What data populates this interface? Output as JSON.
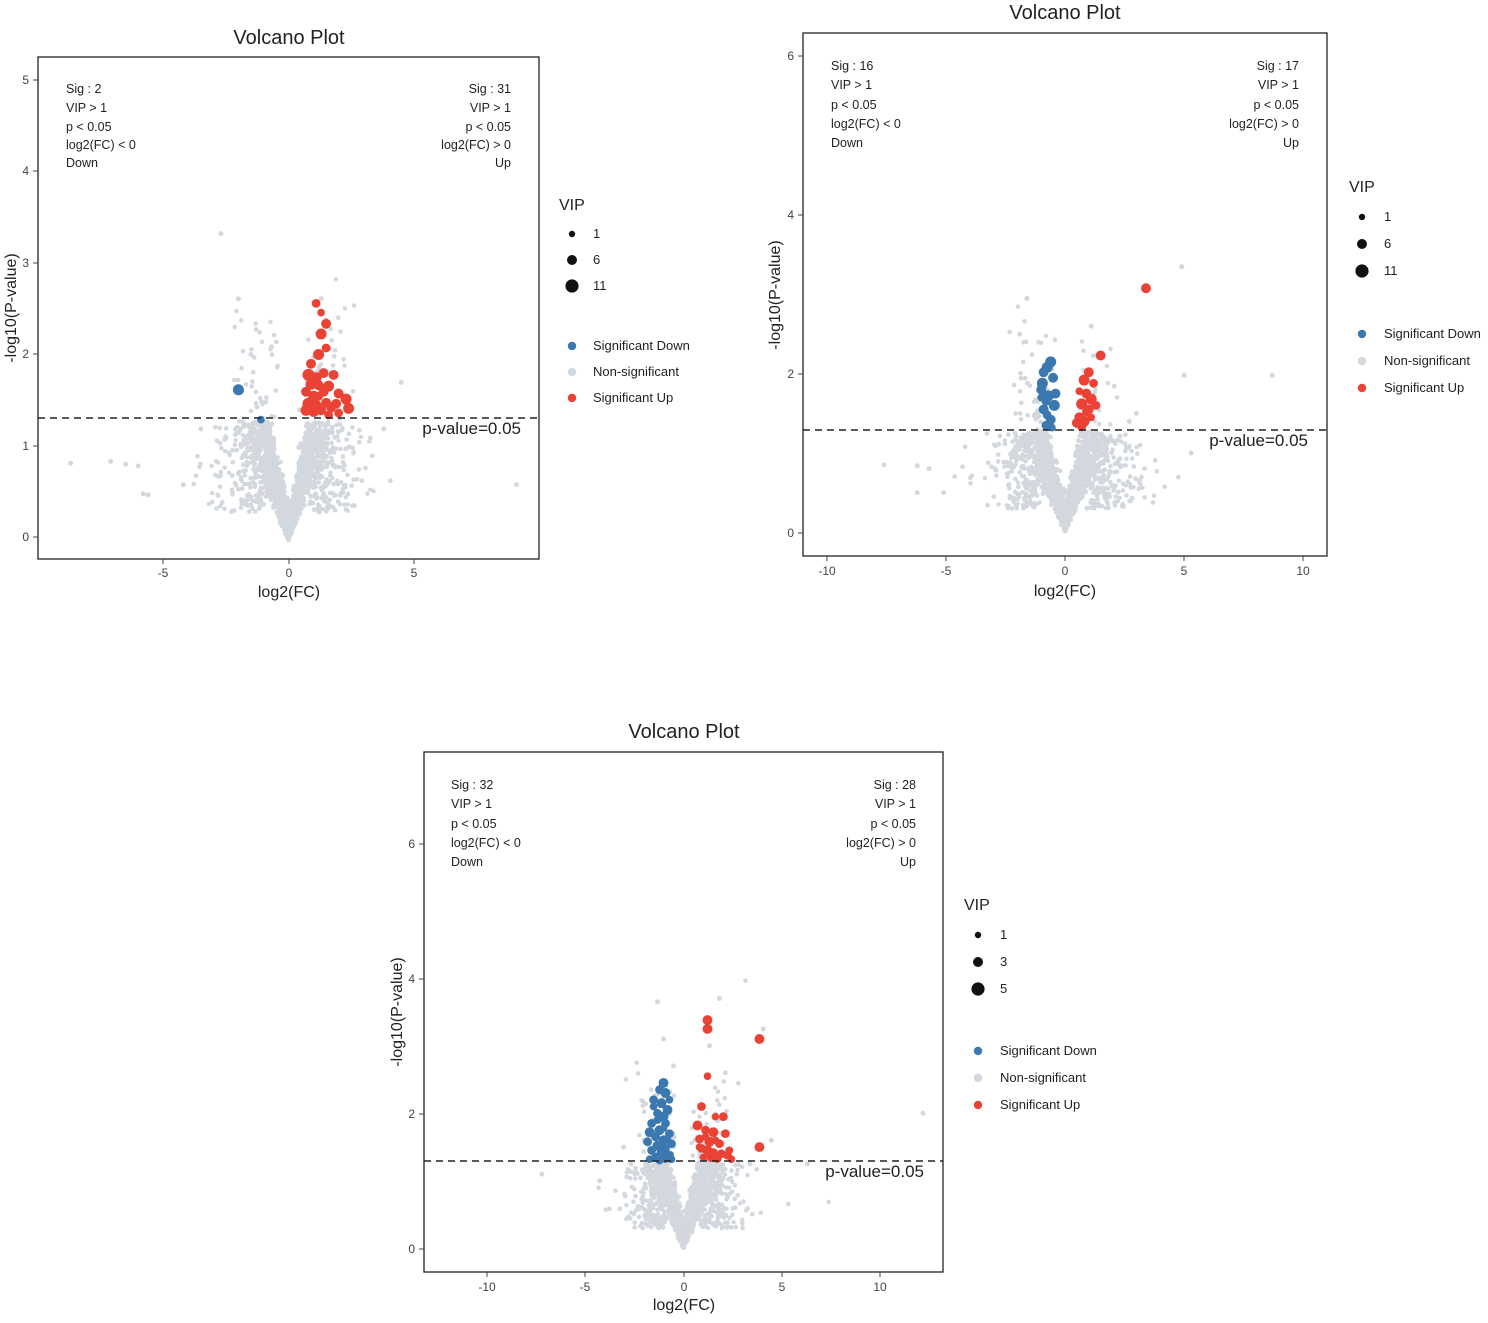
{
  "chart_data": [
    {
      "type": "scatter",
      "title": "Volcano Plot",
      "xlabel": "log2(FC)",
      "ylabel": "-log10(P-value)",
      "xlim": [
        -10,
        10
      ],
      "ylim": [
        -0.2,
        5.2
      ],
      "xticks": [
        -5,
        0,
        5
      ],
      "yticks": [
        0,
        1,
        2,
        3,
        4,
        5
      ],
      "threshold": {
        "y": 1.3,
        "label": "p-value=0.05"
      },
      "annot_left": [
        "Sig : 2",
        "VIP > 1",
        "p < 0.05",
        "log2(FC) < 0",
        "Down"
      ],
      "annot_right": [
        "Sig : 31",
        "VIP > 1",
        "p < 0.05",
        "log2(FC) > 0",
        "Up"
      ],
      "vip_legend": {
        "title": "VIP",
        "values": [
          "1",
          "6",
          "11"
        ]
      },
      "categories": [
        "Significant Down",
        "Non-significant",
        "Significant Up"
      ],
      "colors": {
        "down": "#3b78b0",
        "ns": "#d3d8de",
        "up": "#ea4335"
      },
      "spread": 1.3,
      "outliers": [
        [
          -2.7,
          3.3
        ],
        [
          -2.0,
          2.6
        ],
        [
          -8.7,
          0.83
        ],
        [
          -7.1,
          0.85
        ],
        [
          -6.5,
          0.82
        ],
        [
          -6.0,
          0.8
        ],
        [
          -5.8,
          0.5
        ],
        [
          -5.6,
          0.49
        ],
        [
          -4.2,
          0.6
        ],
        [
          4.5,
          1.7
        ],
        [
          9.1,
          0.6
        ],
        [
          3.8,
          1.2
        ],
        [
          -3.5,
          1.2
        ],
        [
          1.3,
          2.6
        ],
        [
          -1.5,
          2.0
        ]
      ],
      "series": [
        {
          "name": "Significant Down",
          "points": [
            [
              -2.0,
              1.62,
              6
            ],
            [
              -1.1,
              1.3,
              3
            ]
          ]
        },
        {
          "name": "Significant Up",
          "points": [
            [
              1.1,
              2.55,
              4
            ],
            [
              1.3,
              2.45,
              3
            ],
            [
              1.5,
              2.33,
              5
            ],
            [
              1.3,
              2.22,
              6
            ],
            [
              1.2,
              2.0,
              6
            ],
            [
              1.5,
              2.07,
              4
            ],
            [
              0.8,
              1.78,
              7
            ],
            [
              1.1,
              1.75,
              6
            ],
            [
              1.4,
              1.8,
              5
            ],
            [
              1.8,
              1.78,
              5
            ],
            [
              0.9,
              1.68,
              6
            ],
            [
              1.2,
              1.67,
              5
            ],
            [
              1.6,
              1.66,
              6
            ],
            [
              0.7,
              1.6,
              5
            ],
            [
              1.0,
              1.55,
              6
            ],
            [
              1.4,
              1.6,
              5
            ],
            [
              2.0,
              1.58,
              5
            ],
            [
              0.8,
              1.47,
              7
            ],
            [
              1.1,
              1.45,
              6
            ],
            [
              1.5,
              1.48,
              5
            ],
            [
              1.9,
              1.47,
              5
            ],
            [
              2.3,
              1.52,
              6
            ],
            [
              0.7,
              1.4,
              6
            ],
            [
              1.0,
              1.38,
              5
            ],
            [
              1.3,
              1.4,
              5
            ],
            [
              1.7,
              1.43,
              5
            ],
            [
              2.4,
              1.42,
              6
            ],
            [
              1.2,
              1.55,
              4
            ],
            [
              1.6,
              1.35,
              4
            ],
            [
              2.0,
              1.37,
              4
            ],
            [
              0.9,
              1.9,
              5
            ]
          ]
        }
      ]
    },
    {
      "type": "scatter",
      "title": "Volcano Plot",
      "xlabel": "log2(FC)",
      "ylabel": "-log10(P-value)",
      "xlim": [
        -11,
        11
      ],
      "ylim": [
        -0.3,
        6.3
      ],
      "xticks": [
        -10,
        -5,
        0,
        5,
        10
      ],
      "yticks": [
        0,
        2,
        4,
        6
      ],
      "threshold": {
        "y": 1.3,
        "label": "p-value=0.05"
      },
      "annot_left": [
        "Sig : 16",
        "VIP > 1",
        "p < 0.05",
        "log2(FC) < 0",
        "Down"
      ],
      "annot_right": [
        "Sig : 17",
        "VIP > 1",
        "p < 0.05",
        "log2(FC) > 0",
        "Up"
      ],
      "vip_legend": {
        "title": "VIP",
        "values": [
          "1",
          "6",
          "11"
        ]
      },
      "categories": [
        "Significant Down",
        "Non-significant",
        "Significant Up"
      ],
      "colors": {
        "down": "#3b78b0",
        "ns": "#d3d8de",
        "up": "#ea4335"
      },
      "spread": 1.4,
      "outliers": [
        [
          4.9,
          3.35
        ],
        [
          8.7,
          1.98
        ],
        [
          5.0,
          1.98
        ],
        [
          5.3,
          1.0
        ],
        [
          -7.6,
          0.85
        ],
        [
          -6.2,
          0.84
        ],
        [
          -6.2,
          0.5
        ],
        [
          -5.1,
          0.5
        ],
        [
          -5.7,
          0.8
        ],
        [
          3.0,
          1.5
        ],
        [
          -1.6,
          2.95
        ],
        [
          -1.9,
          2.5
        ],
        [
          1.1,
          2.6
        ],
        [
          2.7,
          1.4
        ]
      ],
      "series": [
        {
          "name": "Significant Down",
          "points": [
            [
              -0.6,
              2.15,
              6
            ],
            [
              -0.75,
              2.08,
              6
            ],
            [
              -0.9,
              2.02,
              5
            ],
            [
              -0.5,
              1.95,
              5
            ],
            [
              -0.95,
              1.88,
              6
            ],
            [
              -1.0,
              1.8,
              5
            ],
            [
              -0.7,
              1.72,
              6
            ],
            [
              -0.4,
              1.75,
              5
            ],
            [
              -0.8,
              1.65,
              4
            ],
            [
              -0.45,
              1.6,
              6
            ],
            [
              -0.9,
              1.55,
              5
            ],
            [
              -0.75,
              1.48,
              4
            ],
            [
              -0.6,
              1.42,
              5
            ],
            [
              -0.8,
              1.35,
              4
            ],
            [
              -0.55,
              1.32,
              3
            ],
            [
              -1.0,
              1.7,
              3
            ]
          ]
        },
        {
          "name": "Significant Up",
          "points": [
            [
              3.4,
              3.08,
              5
            ],
            [
              1.5,
              2.23,
              5
            ],
            [
              1.0,
              2.02,
              5
            ],
            [
              0.8,
              1.92,
              6
            ],
            [
              1.2,
              1.88,
              4
            ],
            [
              0.9,
              1.75,
              5
            ],
            [
              1.1,
              1.68,
              6
            ],
            [
              0.7,
              1.62,
              6
            ],
            [
              1.0,
              1.55,
              5
            ],
            [
              0.6,
              1.45,
              5
            ],
            [
              0.8,
              1.4,
              6
            ],
            [
              0.5,
              1.38,
              5
            ],
            [
              0.7,
              1.33,
              4
            ],
            [
              0.9,
              1.52,
              4
            ],
            [
              1.3,
              1.6,
              4
            ],
            [
              0.6,
              1.78,
              3
            ],
            [
              1.1,
              1.45,
              3
            ]
          ]
        }
      ]
    },
    {
      "type": "scatter",
      "title": "Volcano Plot",
      "xlabel": "log2(FC)",
      "ylabel": "-log10(P-value)",
      "xlim": [
        -13,
        13
      ],
      "ylim": [
        -0.35,
        7.35
      ],
      "xticks": [
        -10,
        -5,
        0,
        5,
        10
      ],
      "yticks": [
        0,
        2,
        4,
        6
      ],
      "threshold": {
        "y": 1.3,
        "label": "p-value=0.05"
      },
      "annot_left": [
        "Sig : 32",
        "VIP > 1",
        "p < 0.05",
        "log2(FC) < 0",
        "Down"
      ],
      "annot_right": [
        "Sig : 28",
        "VIP > 1",
        "p < 0.05",
        "log2(FC) > 0",
        "Up"
      ],
      "vip_legend": {
        "title": "VIP",
        "values": [
          "1",
          "3",
          "5"
        ]
      },
      "categories": [
        "Significant Down",
        "Non-significant",
        "Significant Up"
      ],
      "colors": {
        "down": "#3b78b0",
        "ns": "#d3d8de",
        "up": "#ea4335"
      },
      "spread": 1.3,
      "outliers": [
        [
          12.0,
          2.0
        ],
        [
          6.2,
          1.25
        ],
        [
          -7.1,
          1.1
        ],
        [
          -4.2,
          1.0
        ],
        [
          -1.3,
          3.65
        ],
        [
          1.8,
          3.7
        ],
        [
          4.0,
          3.25
        ],
        [
          -1.0,
          3.1
        ],
        [
          1.3,
          3.0
        ],
        [
          -0.5,
          2.7
        ],
        [
          2.1,
          2.6
        ],
        [
          4.4,
          1.6
        ],
        [
          -3.0,
          1.5
        ]
      ],
      "series": [
        {
          "name": "Significant Down",
          "points": [
            [
              -1.0,
              2.45,
              5
            ],
            [
              -1.2,
              2.35,
              4
            ],
            [
              -0.9,
              2.3,
              5
            ],
            [
              -1.5,
              2.2,
              4
            ],
            [
              -1.1,
              2.15,
              5
            ],
            [
              -0.8,
              2.05,
              5
            ],
            [
              -1.3,
              2.0,
              4
            ],
            [
              -1.0,
              1.95,
              5
            ],
            [
              -1.6,
              1.85,
              4
            ],
            [
              -0.9,
              1.85,
              4
            ],
            [
              -1.2,
              1.75,
              5
            ],
            [
              -1.7,
              1.72,
              5
            ],
            [
              -0.7,
              1.7,
              4
            ],
            [
              -1.4,
              1.65,
              4
            ],
            [
              -1.0,
              1.6,
              5
            ],
            [
              -1.8,
              1.58,
              4
            ],
            [
              -0.6,
              1.55,
              4
            ],
            [
              -1.3,
              1.52,
              5
            ],
            [
              -0.9,
              1.48,
              4
            ],
            [
              -1.6,
              1.45,
              4
            ],
            [
              -1.1,
              1.42,
              5
            ],
            [
              -0.7,
              1.38,
              4
            ],
            [
              -1.4,
              1.35,
              4
            ],
            [
              -0.9,
              1.33,
              4
            ],
            [
              -1.2,
              1.3,
              3
            ],
            [
              -1.7,
              1.32,
              3
            ],
            [
              -0.6,
              1.32,
              3
            ],
            [
              -1.5,
              2.1,
              3
            ],
            [
              -0.8,
              1.62,
              3
            ],
            [
              -1.0,
              1.78,
              3
            ],
            [
              -1.3,
              1.9,
              3
            ],
            [
              -0.7,
              2.2,
              3
            ]
          ]
        },
        {
          "name": "Significant Up",
          "points": [
            [
              1.2,
              3.38,
              5
            ],
            [
              1.2,
              3.25,
              5
            ],
            [
              3.8,
              3.1,
              5
            ],
            [
              1.2,
              2.55,
              3
            ],
            [
              0.9,
              2.1,
              4
            ],
            [
              1.6,
              1.95,
              3
            ],
            [
              2.0,
              1.95,
              4
            ],
            [
              0.7,
              1.82,
              5
            ],
            [
              1.1,
              1.75,
              4
            ],
            [
              1.5,
              1.72,
              5
            ],
            [
              2.1,
              1.7,
              4
            ],
            [
              0.8,
              1.62,
              4
            ],
            [
              1.3,
              1.58,
              5
            ],
            [
              1.8,
              1.55,
              4
            ],
            [
              3.8,
              1.5,
              5
            ],
            [
              0.9,
              1.48,
              4
            ],
            [
              1.2,
              1.45,
              5
            ],
            [
              1.5,
              1.42,
              4
            ],
            [
              1.9,
              1.4,
              4
            ],
            [
              2.2,
              1.38,
              4
            ],
            [
              1.0,
              1.35,
              3
            ],
            [
              1.4,
              1.35,
              5
            ],
            [
              1.7,
              1.33,
              4
            ],
            [
              2.4,
              1.32,
              3
            ],
            [
              0.8,
              1.5,
              3
            ],
            [
              1.6,
              1.6,
              3
            ],
            [
              1.1,
              1.65,
              3
            ],
            [
              2.3,
              1.45,
              3
            ]
          ]
        }
      ]
    }
  ]
}
